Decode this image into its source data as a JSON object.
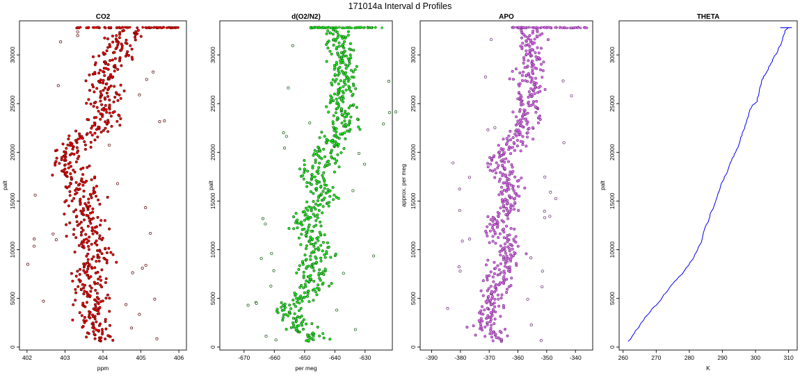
{
  "figure": {
    "title": "171014a   Interval d Profiles"
  },
  "chart_data": [
    {
      "type": "scatter",
      "title": "CO2",
      "xlabel": "ppm",
      "ylabel": "palt",
      "xlim": [
        401.8,
        406.2
      ],
      "ylim": [
        -300,
        33500
      ],
      "xticks": [
        402,
        403,
        404,
        405,
        406
      ],
      "yticks": [
        0,
        5000,
        10000,
        15000,
        20000,
        25000,
        30000
      ],
      "colors": {
        "fill": "#ee0000",
        "edge": "#5a0000"
      },
      "profile": [
        [
          600,
          403.9
        ],
        [
          2000,
          403.8
        ],
        [
          3500,
          403.7
        ],
        [
          5000,
          403.7
        ],
        [
          6500,
          403.7
        ],
        [
          8000,
          403.6
        ],
        [
          9500,
          403.8
        ],
        [
          11000,
          403.7
        ],
        [
          12500,
          403.6
        ],
        [
          14000,
          403.5
        ],
        [
          15500,
          403.5
        ],
        [
          17000,
          403.4
        ],
        [
          18500,
          403.1
        ],
        [
          19500,
          402.9
        ],
        [
          20500,
          403.2
        ],
        [
          21500,
          403.5
        ],
        [
          22500,
          403.9
        ],
        [
          23500,
          404.1
        ],
        [
          25000,
          404.0
        ],
        [
          26500,
          404.1
        ],
        [
          28000,
          404.0
        ],
        [
          29500,
          404.3
        ],
        [
          31000,
          404.4
        ],
        [
          32000,
          404.5
        ],
        [
          32800,
          404.7
        ]
      ],
      "spread": 0.38,
      "top_band": {
        "y": 32800,
        "x_range": [
          403.3,
          406.0
        ]
      }
    },
    {
      "type": "scatter",
      "title": "d(O2/N2)",
      "xlabel": "per meg",
      "ylabel": "palt",
      "xlim": [
        -678,
        -621
      ],
      "ylim": [
        -300,
        33500
      ],
      "xticks": [
        -670,
        -660,
        -650,
        -640,
        -630
      ],
      "yticks": [
        0,
        5000,
        10000,
        15000,
        20000,
        25000,
        30000
      ],
      "colors": {
        "fill": "#22ee22",
        "edge": "#0b5a0b"
      },
      "profile": [
        [
          600,
          -646
        ],
        [
          2000,
          -652
        ],
        [
          3500,
          -656
        ],
        [
          5000,
          -652
        ],
        [
          6500,
          -646
        ],
        [
          8000,
          -648
        ],
        [
          9500,
          -645
        ],
        [
          11000,
          -647
        ],
        [
          12500,
          -650
        ],
        [
          14000,
          -648
        ],
        [
          15500,
          -642
        ],
        [
          17000,
          -646
        ],
        [
          18500,
          -645
        ],
        [
          19500,
          -644
        ],
        [
          20500,
          -642
        ],
        [
          21500,
          -640
        ],
        [
          22500,
          -638
        ],
        [
          23500,
          -636
        ],
        [
          25000,
          -638
        ],
        [
          26500,
          -637
        ],
        [
          28000,
          -638
        ],
        [
          29500,
          -637
        ],
        [
          31000,
          -638
        ],
        [
          32000,
          -640
        ],
        [
          32800,
          -641
        ]
      ],
      "spread": 4.2,
      "top_band": {
        "y": 32800,
        "x_range": [
          -648,
          -624
        ]
      }
    },
    {
      "type": "scatter",
      "title": "APO",
      "xlabel": "",
      "ylabel": "approx. per meg",
      "xlim": [
        -394,
        -334
      ],
      "ylim": [
        -300,
        33500
      ],
      "xticks": [
        -390,
        -380,
        -370,
        -360,
        -350,
        -340
      ],
      "yticks": [
        0,
        5000,
        10000,
        15000,
        20000,
        25000,
        30000
      ],
      "colors": {
        "fill": "#e070f0",
        "edge": "#6a2a78"
      },
      "profile": [
        [
          600,
          -367
        ],
        [
          2000,
          -371
        ],
        [
          3500,
          -371
        ],
        [
          5000,
          -367
        ],
        [
          6500,
          -367
        ],
        [
          8000,
          -366
        ],
        [
          9500,
          -364
        ],
        [
          11000,
          -364
        ],
        [
          12500,
          -368
        ],
        [
          14000,
          -365
        ],
        [
          15500,
          -362
        ],
        [
          17000,
          -364
        ],
        [
          18500,
          -366
        ],
        [
          19500,
          -365
        ],
        [
          20500,
          -362
        ],
        [
          21500,
          -361
        ],
        [
          22500,
          -357
        ],
        [
          23500,
          -356
        ],
        [
          25000,
          -357
        ],
        [
          26500,
          -356
        ],
        [
          28000,
          -356
        ],
        [
          29500,
          -355
        ],
        [
          31000,
          -356
        ],
        [
          32000,
          -357
        ],
        [
          32800,
          -356
        ]
      ],
      "spread": 4.0,
      "top_band": {
        "y": 32800,
        "x_range": [
          -362,
          -336
        ]
      }
    },
    {
      "type": "line",
      "title": "THETA",
      "xlabel": "K",
      "ylabel": "palt",
      "xlim": [
        258.8,
        312.6
      ],
      "ylim": [
        -300,
        33500
      ],
      "xticks": [
        260,
        270,
        280,
        290,
        300,
        310
      ],
      "yticks": [
        0,
        5000,
        10000,
        15000,
        20000,
        25000,
        30000
      ],
      "colors": {
        "line": "#0000ee"
      },
      "series": [
        {
          "x": [
            261.5,
            262.2,
            263.5,
            265.0,
            266.5,
            268.5,
            270.5,
            272.0,
            273.5,
            275.0,
            277.5,
            278.8,
            279.5,
            281.0,
            282.5,
            283.8,
            284.5,
            286.0,
            286.8,
            288.0,
            289.0,
            290.0,
            291.5,
            292.8,
            294.0,
            295.2,
            296.0,
            297.2,
            298.0,
            299.0,
            300.5,
            301.2,
            302.0,
            303.0,
            304.5,
            305.5,
            306.8,
            307.8,
            308.5,
            309.2,
            310.0
          ],
          "y": [
            600,
            800,
            1500,
            2200,
            3000,
            3800,
            4500,
            5200,
            5800,
            6500,
            7400,
            8000,
            8300,
            9000,
            10000,
            11000,
            12000,
            13200,
            14000,
            15000,
            16000,
            17000,
            18000,
            19200,
            20000,
            21000,
            22000,
            23000,
            24000,
            24800,
            25200,
            26500,
            27500,
            28000,
            29000,
            29700,
            30500,
            31200,
            32000,
            32600,
            32800
          ]
        }
      ],
      "top_band": {
        "y": 32800,
        "x_range": [
          307.5,
          311.0
        ]
      }
    }
  ]
}
